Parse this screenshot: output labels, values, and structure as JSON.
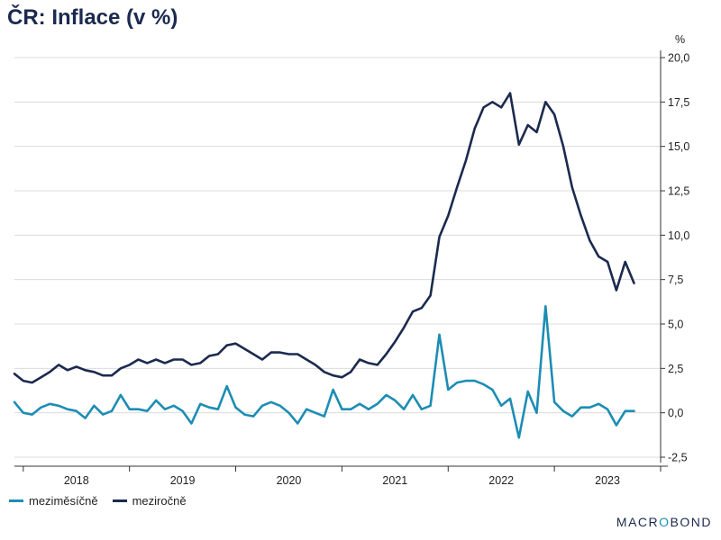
{
  "title": "ČR: Inflace (v %)",
  "brand": {
    "prefix": "MACR",
    "o": "O",
    "suffix": "BOND"
  },
  "colors": {
    "mom": "#1d8db4",
    "yoy": "#1b2a4e",
    "grid": "#dcdcdc",
    "axis": "#333333"
  },
  "chart_data": {
    "type": "line",
    "title": "ČR: Inflace (v %)",
    "unit": "%",
    "ylim": [
      -2.5,
      20.0
    ],
    "y_ticks": [
      "-2,5",
      "0,0",
      "2,5",
      "5,0",
      "7,5",
      "10,0",
      "12,5",
      "15,0",
      "17,5",
      "20,0"
    ],
    "x_labels": [
      "2018",
      "2019",
      "2020",
      "2021",
      "2022",
      "2023"
    ],
    "x_start": "2017-12",
    "grid": true,
    "legend_position": "bottom-left",
    "series": [
      {
        "name": "meziměsíčně",
        "color": "#1d8db4",
        "values": [
          0.6,
          0.0,
          -0.1,
          0.3,
          0.5,
          0.4,
          0.2,
          0.1,
          -0.3,
          0.4,
          -0.1,
          0.1,
          1.0,
          0.2,
          0.2,
          0.1,
          0.7,
          0.2,
          0.4,
          0.1,
          -0.6,
          0.5,
          0.3,
          0.2,
          1.5,
          0.3,
          -0.1,
          -0.2,
          0.4,
          0.6,
          0.4,
          0.0,
          -0.6,
          0.2,
          0.0,
          -0.2,
          1.3,
          0.2,
          0.2,
          0.5,
          0.2,
          0.5,
          1.0,
          0.7,
          0.2,
          1.0,
          0.2,
          0.4,
          4.4,
          1.3,
          1.7,
          1.8,
          1.8,
          1.6,
          1.3,
          0.4,
          0.8,
          -1.4,
          1.2,
          0.0,
          6.0,
          0.6,
          0.1,
          -0.2,
          0.3,
          0.3,
          0.5,
          0.2,
          -0.7,
          0.1,
          0.1
        ]
      },
      {
        "name": "meziročně",
        "color": "#1b2a4e",
        "values": [
          2.2,
          1.8,
          1.7,
          2.0,
          2.3,
          2.7,
          2.4,
          2.6,
          2.4,
          2.3,
          2.1,
          2.1,
          2.5,
          2.7,
          3.0,
          2.8,
          3.0,
          2.8,
          3.0,
          3.0,
          2.7,
          2.8,
          3.2,
          3.3,
          3.8,
          3.9,
          3.6,
          3.3,
          3.0,
          3.4,
          3.4,
          3.3,
          3.3,
          3.0,
          2.7,
          2.3,
          2.1,
          2.0,
          2.3,
          3.0,
          2.8,
          2.7,
          3.3,
          4.0,
          4.8,
          5.7,
          5.9,
          6.6,
          9.9,
          11.1,
          12.7,
          14.2,
          16.0,
          17.2,
          17.5,
          17.2,
          18.0,
          15.1,
          16.2,
          15.8,
          17.5,
          16.8,
          15.0,
          12.7,
          11.1,
          9.7,
          8.8,
          8.5,
          6.9,
          8.5,
          7.3
        ]
      }
    ]
  }
}
